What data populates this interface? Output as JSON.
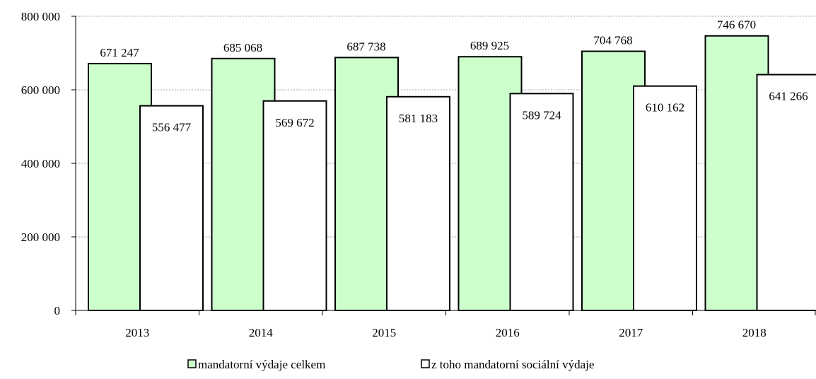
{
  "chart_data": {
    "type": "bar",
    "categories": [
      "2013",
      "2014",
      "2015",
      "2016",
      "2017",
      "2018"
    ],
    "series": [
      {
        "name": "mandatorní výdaje celkem",
        "values": [
          671247,
          685068,
          687738,
          689925,
          704768,
          746670
        ],
        "labels": [
          "671 247",
          "685 068",
          "687 738",
          "689 925",
          "704 768",
          "746 670"
        ],
        "color": "#ccffcc"
      },
      {
        "name": "z toho mandatorní sociální výdaje",
        "values": [
          556477,
          569672,
          581183,
          589724,
          610162,
          641266
        ],
        "labels": [
          "556 477",
          "569 672",
          "581 183",
          "589 724",
          "610 162",
          "641 266"
        ],
        "color": "#ffffff"
      }
    ],
    "ylim": [
      0,
      800000
    ],
    "yticks": [
      0,
      200000,
      400000,
      600000,
      800000
    ],
    "ytick_labels": [
      "0",
      "200 000",
      "400 000",
      "600 000",
      "800 000"
    ],
    "grid": true,
    "legend_position": "bottom"
  }
}
